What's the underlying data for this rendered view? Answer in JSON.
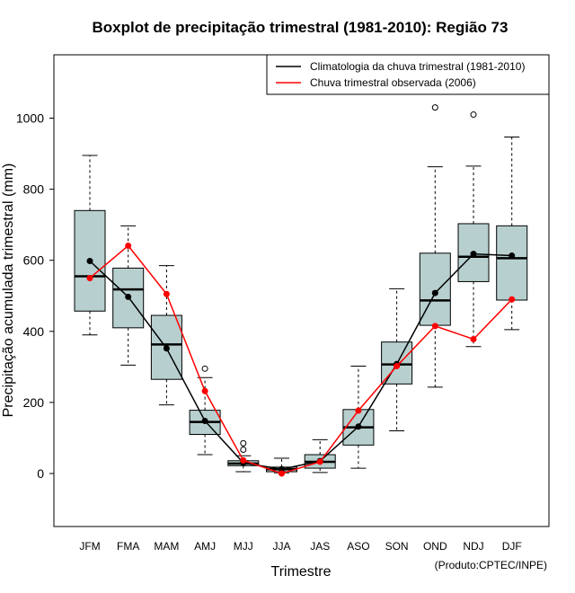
{
  "chart_data": {
    "type": "boxplot",
    "title": "Boxplot de precipitação trimestral (1981-2010): Região 73",
    "xlabel": "Trimestre",
    "ylabel": "Precipitação acumulada trimestral (mm)",
    "ylim": [
      -150,
      1150
    ],
    "yticks": [
      0,
      200,
      400,
      600,
      800,
      1000
    ],
    "categories": [
      "JFM",
      "FMA",
      "MAM",
      "AMJ",
      "MJJ",
      "JJA",
      "JAS",
      "ASO",
      "SON",
      "OND",
      "NDJ",
      "DJF"
    ],
    "boxes": [
      {
        "min": 390,
        "q1": 457,
        "median": 555,
        "q3": 740,
        "max": 895,
        "outliers": []
      },
      {
        "min": 305,
        "q1": 410,
        "median": 518,
        "q3": 578,
        "max": 697,
        "outliers": []
      },
      {
        "min": 193,
        "q1": 265,
        "median": 363,
        "q3": 445,
        "max": 585,
        "outliers": []
      },
      {
        "min": 53,
        "q1": 110,
        "median": 145,
        "q3": 178,
        "max": 270,
        "outliers": [
          295
        ]
      },
      {
        "min": 5,
        "q1": 22,
        "median": 28,
        "q3": 36,
        "max": 50,
        "outliers": [
          85,
          67
        ]
      },
      {
        "min": 2,
        "q1": 5,
        "median": 12,
        "q3": 18,
        "max": 43,
        "outliers": []
      },
      {
        "min": 3,
        "q1": 15,
        "median": 33,
        "q3": 53,
        "max": 95,
        "outliers": []
      },
      {
        "min": 15,
        "q1": 80,
        "median": 130,
        "q3": 180,
        "max": 302,
        "outliers": []
      },
      {
        "min": 120,
        "q1": 252,
        "median": 307,
        "q3": 370,
        "max": 520,
        "outliers": []
      },
      {
        "min": 243,
        "q1": 417,
        "median": 487,
        "q3": 620,
        "max": 863,
        "outliers": [
          1030
        ]
      },
      {
        "min": 357,
        "q1": 540,
        "median": 610,
        "q3": 703,
        "max": 865,
        "outliers": [
          1010
        ]
      },
      {
        "min": 405,
        "q1": 488,
        "median": 606,
        "q3": 697,
        "max": 947,
        "outliers": []
      }
    ],
    "series": [
      {
        "name": "Climatologia da chuva trimestral (1981-2010)",
        "color": "#000000",
        "values": [
          598,
          497,
          352,
          148,
          30,
          12,
          35,
          132,
          308,
          508,
          618,
          613
        ]
      },
      {
        "name": "Chuva trimestral observada (2006)",
        "color": "#ff0000",
        "values": [
          550,
          641,
          505,
          232,
          37,
          0,
          33,
          177,
          302,
          415,
          378,
          490
        ]
      }
    ],
    "legend_position": "top-right",
    "box_fill": "#b7d0cf",
    "credit": "(Produto:CPTEC/INPE)"
  }
}
